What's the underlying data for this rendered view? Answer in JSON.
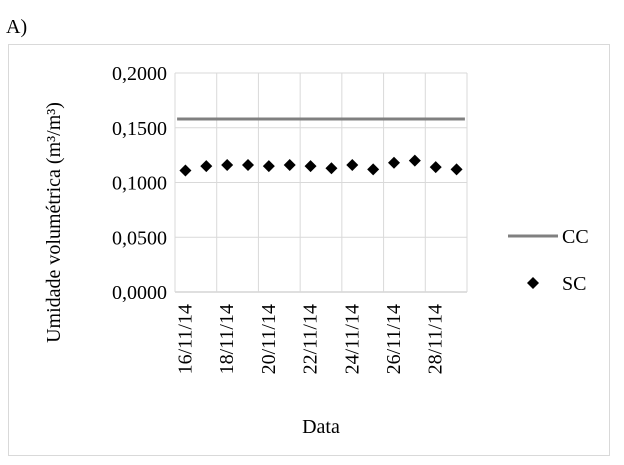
{
  "panel_label": "A)",
  "chart_data": {
    "type": "line",
    "ylabel": "Umidade volumétrica (m³/m³)",
    "xlabel": "Data",
    "ylim": [
      0,
      0.2
    ],
    "y_ticks": [
      0,
      0.05,
      0.1,
      0.15,
      0.2
    ],
    "y_tick_labels": [
      "0,0000",
      "0,0500",
      "0,1000",
      "0,1500",
      "0,2000"
    ],
    "x": [
      "16/11/14",
      "17/11/14",
      "18/11/14",
      "19/11/14",
      "20/11/14",
      "21/11/14",
      "22/11/14",
      "23/11/14",
      "24/11/14",
      "25/11/14",
      "26/11/14",
      "27/11/14",
      "28/11/14",
      "29/11/14"
    ],
    "x_tick_labels": [
      "16/11/14",
      "18/11/14",
      "20/11/14",
      "22/11/14",
      "24/11/14",
      "26/11/14",
      "28/11/14"
    ],
    "grid": true,
    "legend_position": "right",
    "series": [
      {
        "name": "CC",
        "kind": "line",
        "color": "#808080",
        "values": [
          0.158,
          0.158,
          0.158,
          0.158,
          0.158,
          0.158,
          0.158,
          0.158,
          0.158,
          0.158,
          0.158,
          0.158,
          0.158,
          0.158
        ]
      },
      {
        "name": "SC",
        "kind": "scatter",
        "marker": "diamond",
        "color": "#000000",
        "values": [
          0.111,
          0.115,
          0.116,
          0.116,
          0.115,
          0.116,
          0.115,
          0.113,
          0.116,
          0.112,
          0.118,
          0.12,
          0.114,
          0.112
        ]
      }
    ]
  }
}
